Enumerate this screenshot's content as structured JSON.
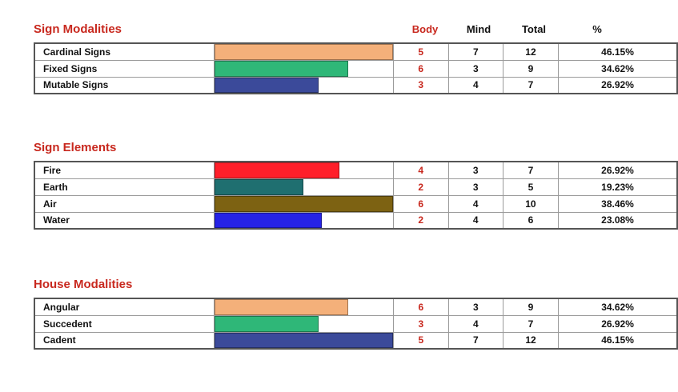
{
  "headers": {
    "body": "Body",
    "mind": "Mind",
    "total": "Total",
    "pct": "%"
  },
  "sections": [
    {
      "title": "Sign Modalities",
      "rows": [
        {
          "label": "Cardinal Signs",
          "body": "5",
          "mind": "7",
          "total": "12",
          "pct": "46.15%",
          "fill": 1.0,
          "color": "#f4b07a"
        },
        {
          "label": "Fixed Signs",
          "body": "6",
          "mind": "3",
          "total": "9",
          "pct": "34.62%",
          "fill": 0.75,
          "color": "#2fb778"
        },
        {
          "label": "Mutable Signs",
          "body": "3",
          "mind": "4",
          "total": "7",
          "pct": "26.92%",
          "fill": 0.583,
          "color": "#3b4a9a"
        }
      ]
    },
    {
      "title": "Sign Elements",
      "rows": [
        {
          "label": "Fire",
          "body": "4",
          "mind": "3",
          "total": "7",
          "pct": "26.92%",
          "fill": 0.7,
          "color": "#ff1f2a"
        },
        {
          "label": "Earth",
          "body": "2",
          "mind": "3",
          "total": "5",
          "pct": "19.23%",
          "fill": 0.5,
          "color": "#1f6f70"
        },
        {
          "label": "Air",
          "body": "6",
          "mind": "4",
          "total": "10",
          "pct": "38.46%",
          "fill": 1.0,
          "color": "#7d6212"
        },
        {
          "label": "Water",
          "body": "2",
          "mind": "4",
          "total": "6",
          "pct": "23.08%",
          "fill": 0.6,
          "color": "#2623e6"
        }
      ]
    },
    {
      "title": "House Modalities",
      "rows": [
        {
          "label": "Angular",
          "body": "6",
          "mind": "3",
          "total": "9",
          "pct": "34.62%",
          "fill": 0.75,
          "color": "#f4b07a"
        },
        {
          "label": "Succedent",
          "body": "3",
          "mind": "4",
          "total": "7",
          "pct": "26.92%",
          "fill": 0.583,
          "color": "#2fb778"
        },
        {
          "label": "Cadent",
          "body": "5",
          "mind": "7",
          "total": "12",
          "pct": "46.15%",
          "fill": 1.0,
          "color": "#3b4a9a"
        }
      ]
    }
  ]
}
